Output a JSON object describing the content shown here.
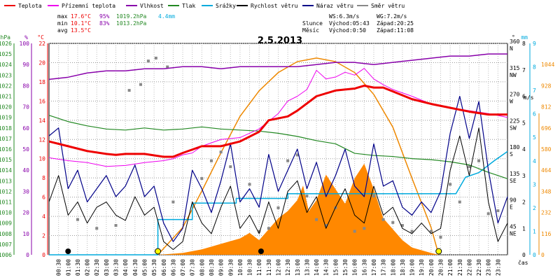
{
  "chart_data": {
    "type": "line",
    "title": "2.5.2013",
    "x_label": "čas",
    "x_ticks": [
      "00:30",
      "01:00",
      "01:30",
      "02:00",
      "02:30",
      "03:00",
      "03:30",
      "04:00",
      "04:30",
      "05:00",
      "05:30",
      "06:00",
      "06:30",
      "07:00",
      "07:30",
      "08:00",
      "08:30",
      "09:00",
      "09:30",
      "10:00",
      "10:30",
      "11:00",
      "11:30",
      "12:00",
      "12:30",
      "13:00",
      "13:30",
      "14:00",
      "14:30",
      "15:00",
      "15:30",
      "16:00",
      "16:30",
      "17:00",
      "17:30",
      "18:00",
      "18:30",
      "19:00",
      "19:30",
      "20:00",
      "20:30",
      "21:00",
      "21:30",
      "22:00",
      "22:30",
      "23:00",
      "23:30"
    ],
    "axes": {
      "pressure": {
        "unit": "hPa",
        "range": [
          1006,
          1026
        ],
        "ticks": [
          "1006",
          "1007",
          "1008",
          "1009",
          "1010",
          "1011",
          "1012",
          "1013",
          "1014",
          "1015",
          "1016",
          "1017",
          "1018",
          "1019",
          "1020",
          "1021",
          "1022",
          "1023",
          "1024",
          "1025",
          "1026"
        ]
      },
      "humidity": {
        "unit": "%",
        "range": [
          0,
          100
        ],
        "ticks": [
          "0",
          "10",
          "20",
          "30",
          "40",
          "50",
          "60",
          "70",
          "80",
          "90",
          "100"
        ]
      },
      "temperature": {
        "unit": "°C",
        "range": [
          0,
          22
        ],
        "ticks": [
          "0",
          "2",
          "4",
          "6",
          "8",
          "10",
          "12",
          "14",
          "16",
          "18",
          "20",
          "22"
        ]
      },
      "direction": {
        "unit": "°",
        "ticks": [
          {
            "deg": "360",
            "dir": "N"
          },
          {
            "deg": "315",
            "dir": "NW"
          },
          {
            "deg": "270",
            "dir": "W"
          },
          {
            "deg": "225",
            "dir": "SW"
          },
          {
            "deg": "180",
            "dir": "S"
          },
          {
            "deg": "135",
            "dir": "SE"
          },
          {
            "deg": "90",
            "dir": "E"
          },
          {
            "deg": "45",
            "dir": "NE"
          }
        ]
      },
      "rain": {
        "unit": "mm",
        "range": [
          0,
          9
        ],
        "ticks": [
          "0",
          "1",
          "2",
          "3",
          "4",
          "5",
          "6",
          "7",
          "8",
          "9"
        ]
      },
      "wind": {
        "unit": "m/s",
        "range": [
          0,
          8
        ],
        "ticks": [
          "0",
          "1",
          "2",
          "3",
          "4",
          "5",
          "6",
          "7",
          "8"
        ]
      },
      "solar": {
        "unit": "W/m2",
        "range": [
          0,
          1160
        ],
        "ticks": [
          "0",
          "116",
          "232",
          "348",
          "464",
          "580",
          "696",
          "812",
          "928",
          "1044"
        ]
      }
    },
    "legend": [
      {
        "name": "Teplota",
        "color": "#ee0000"
      },
      {
        "name": "Přízemní teplota",
        "color": "#ee00ee"
      },
      {
        "name": "Vlhkost",
        "color": "#8800aa"
      },
      {
        "name": "Tlak",
        "color": "#228822"
      },
      {
        "name": "Srážky",
        "color": "#00aadd"
      },
      {
        "name": "Rychlost větru",
        "color": "#000000"
      },
      {
        "name": "Náraz větru",
        "color": "#000088"
      },
      {
        "name": "Směr větru",
        "color": "#888888"
      }
    ],
    "stats": [
      {
        "label": "max",
        "temp": "17.6°C",
        "hum": "95%",
        "press": "1019.2hPa",
        "rain": "4.4mm"
      },
      {
        "label": "min",
        "temp": "10.1°C",
        "hum": "83%",
        "press": "1013.2hPa",
        "rain": ""
      },
      {
        "label": "avg",
        "temp": "13.5°C",
        "hum": "",
        "press": "",
        "rain": ""
      }
    ],
    "wind_info": {
      "ws": "WS:6.3m/s",
      "wg": "WG:7.2m/s"
    },
    "sun": {
      "label": "Slunce",
      "rise": "Východ:05:43",
      "set": "Západ:20:25"
    },
    "moon": {
      "label": "Měsíc",
      "rise": "Východ:0:50",
      "set": "Západ:11:08"
    },
    "series": [
      {
        "name": "Teplota",
        "axis": "temperature",
        "x": [
          0,
          1,
          2,
          3,
          3.5,
          4,
          5,
          6,
          6.5,
          7,
          8,
          9,
          10,
          11,
          11.5,
          12,
          12.5,
          13,
          14,
          15,
          16,
          16.5,
          17,
          17.5,
          18,
          19,
          20,
          21,
          22,
          23,
          24
        ],
        "y": [
          11.8,
          11.3,
          10.8,
          10.5,
          10.4,
          10.5,
          10.5,
          10.2,
          10.2,
          10.6,
          11.3,
          11.3,
          11.8,
          12.8,
          14.0,
          14.2,
          14.4,
          15.0,
          16.5,
          17.1,
          17.3,
          17.6,
          17.4,
          17.4,
          17.0,
          16.2,
          15.7,
          15.3,
          14.9,
          14.6,
          14.6
        ]
      },
      {
        "name": "Přízemní teplota",
        "axis": "temperature",
        "x": [
          0,
          1,
          2,
          3,
          4,
          5,
          6,
          6.5,
          7,
          7.5,
          8,
          9,
          10,
          11,
          12,
          12.5,
          13,
          13.5,
          14,
          14.5,
          15,
          15.5,
          16,
          16.5,
          17,
          17.5,
          18,
          19,
          20,
          21,
          22,
          23,
          24
        ],
        "y": [
          10.1,
          9.8,
          9.6,
          9.2,
          9.3,
          9.6,
          9.8,
          10.0,
          10.4,
          10.6,
          11.3,
          12.0,
          12.2,
          13.1,
          14.7,
          16.0,
          16.5,
          17.2,
          19.2,
          18.3,
          18.5,
          19.0,
          18.7,
          19.4,
          18.3,
          17.7,
          17.2,
          16.5,
          15.7,
          15.3,
          15.0,
          14.7,
          14.3
        ]
      },
      {
        "name": "Vlhkost",
        "axis": "humidity",
        "x": [
          0,
          1,
          2,
          3,
          4,
          5,
          6,
          7,
          8,
          9,
          10,
          11,
          12,
          13,
          14,
          15,
          16,
          17,
          18,
          19,
          20,
          21,
          22,
          23,
          24
        ],
        "y": [
          83,
          84,
          86,
          87,
          87,
          88,
          88,
          89,
          89,
          88,
          89,
          89,
          89,
          89,
          90,
          91,
          91,
          90,
          91,
          92,
          93,
          94,
          94,
          95,
          95
        ]
      },
      {
        "name": "Tlak",
        "axis": "pressure",
        "x": [
          0,
          1,
          2,
          3,
          4,
          5,
          6,
          7,
          8,
          9,
          10,
          11,
          12,
          13,
          14,
          15,
          16,
          17,
          18,
          19,
          20,
          21,
          22,
          23,
          24
        ],
        "y": [
          1019.2,
          1018.6,
          1018.2,
          1017.9,
          1017.8,
          1018.0,
          1017.8,
          1017.9,
          1018.1,
          1017.9,
          1017.8,
          1017.7,
          1017.5,
          1017.2,
          1016.8,
          1016.5,
          1015.6,
          1015.4,
          1015.3,
          1015.1,
          1015.0,
          1014.8,
          1014.5,
          1013.8,
          1013.2
        ]
      },
      {
        "name": "Srážky",
        "axis": "rain",
        "x": [
          0,
          5.7,
          5.7,
          7.5,
          7.5,
          9.8,
          9.8,
          12.5,
          12.5,
          16.5,
          16.5,
          20.5,
          20.5,
          21.3,
          21.8,
          22.5,
          23.3,
          24
        ],
        "y": [
          0,
          0,
          1.5,
          1.5,
          2.2,
          2.2,
          2.4,
          2.4,
          2.6,
          2.6,
          2.6,
          2.6,
          2.6,
          2.6,
          3.3,
          3.5,
          4.0,
          4.4
        ]
      },
      {
        "name": "Rychlost větru",
        "axis": "wind",
        "x": [
          0,
          0.5,
          1,
          1.5,
          2,
          2.5,
          3,
          3.5,
          4,
          4.5,
          5,
          5.5,
          6,
          6.5,
          7,
          7.5,
          8,
          8.5,
          9,
          9.5,
          10,
          10.5,
          11,
          11.5,
          12,
          12.5,
          13,
          13.5,
          14,
          14.5,
          15,
          15.5,
          16,
          16.5,
          17,
          17.5,
          18,
          18.5,
          19,
          19.5,
          20,
          20.5,
          21,
          21.5,
          22,
          22.5,
          23,
          23.5,
          24
        ],
        "y": [
          2.0,
          3.0,
          1.5,
          2.0,
          1.2,
          1.8,
          2.0,
          1.5,
          1.3,
          2.2,
          1.5,
          1.8,
          0.5,
          0.2,
          0.5,
          2.0,
          1.2,
          0.8,
          1.8,
          2.6,
          1.0,
          1.5,
          0.8,
          2.0,
          1.0,
          2.4,
          2.8,
          1.6,
          2.2,
          1.0,
          1.8,
          2.5,
          1.5,
          1.2,
          2.6,
          1.5,
          1.8,
          1.0,
          0.8,
          1.2,
          0.8,
          1.0,
          3.2,
          4.5,
          3.0,
          4.8,
          2.0,
          0.5,
          1.2
        ]
      },
      {
        "name": "Náraz větru",
        "axis": "wind",
        "x": [
          0,
          0.5,
          1,
          1.5,
          2,
          2.5,
          3,
          3.5,
          4,
          4.5,
          5,
          5.5,
          6,
          6.5,
          7,
          7.5,
          8,
          8.5,
          9,
          9.5,
          10,
          10.5,
          11,
          11.5,
          12,
          12.5,
          13,
          13.5,
          14,
          14.5,
          15,
          15.5,
          16,
          16.5,
          17,
          17.5,
          18,
          18.5,
          19,
          19.5,
          20,
          20.5,
          21,
          21.5,
          22,
          22.5,
          23,
          23.5,
          24
        ],
        "y": [
          4.5,
          4.8,
          2.5,
          3.2,
          2.0,
          2.5,
          3.0,
          2.2,
          2.6,
          3.4,
          2.2,
          2.6,
          1.2,
          0.5,
          1.0,
          3.2,
          2.5,
          1.6,
          2.8,
          4.2,
          2.0,
          2.5,
          1.8,
          3.8,
          2.4,
          3.2,
          4.0,
          2.5,
          3.5,
          2.2,
          3.0,
          4.0,
          2.6,
          2.2,
          4.2,
          2.6,
          2.8,
          1.8,
          1.5,
          2.0,
          1.6,
          2.4,
          4.6,
          6.0,
          4.4,
          5.8,
          3.2,
          1.2,
          2.2
        ]
      },
      {
        "name": "Směr větru",
        "axis": "direction",
        "x": [
          1.5,
          2.5,
          3.5,
          4.2,
          4.8,
          5.2,
          5.6,
          6.2,
          6.5,
          8,
          8.5,
          9,
          9.5,
          10.5,
          11,
          11.5,
          12,
          12.5,
          13,
          13.5,
          14,
          14.5,
          15,
          16,
          16.5,
          17,
          17.5,
          18,
          18.5,
          19,
          20,
          20.5,
          21,
          21.5,
          22,
          22.5,
          23,
          23.5
        ],
        "y": [
          60,
          45,
          50,
          280,
          290,
          330,
          335,
          320,
          90,
          130,
          160,
          175,
          150,
          120,
          40,
          45,
          80,
          160,
          170,
          100,
          60,
          50,
          80,
          40,
          45,
          100,
          60,
          55,
          50,
          40,
          40,
          30,
          120,
          90,
          150,
          160,
          70,
          75
        ]
      },
      {
        "name": "Solar",
        "axis": "solar",
        "x": [
          5.7,
          7,
          8,
          9,
          10,
          11,
          12,
          13,
          14,
          15,
          16,
          17,
          18,
          19,
          20,
          20.4
        ],
        "y": [
          0,
          150,
          350,
          560,
          760,
          900,
          1000,
          1060,
          1080,
          1060,
          1000,
          880,
          700,
          420,
          150,
          0
        ]
      },
      {
        "name": "Solar measured",
        "axis": "solar",
        "x": [
          5.7,
          7,
          8,
          9,
          10,
          10.5,
          11,
          11.5,
          12,
          12.5,
          13,
          13.3,
          13.6,
          14,
          14.5,
          15,
          15.5,
          16,
          16.5,
          17,
          17.5,
          18,
          18.5,
          19,
          20,
          20.4
        ],
        "y": [
          0,
          10,
          30,
          60,
          90,
          120,
          80,
          140,
          200,
          240,
          300,
          380,
          240,
          300,
          440,
          360,
          280,
          420,
          500,
          360,
          200,
          140,
          80,
          40,
          10,
          0
        ]
      }
    ]
  }
}
